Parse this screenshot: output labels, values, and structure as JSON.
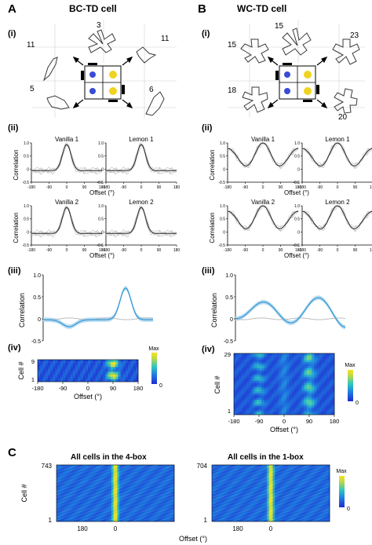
{
  "panels": {
    "A": {
      "letter": "A",
      "title": "BC-TD cell"
    },
    "B": {
      "letter": "B",
      "title": "WC-TD cell"
    },
    "C": {
      "letter": "C"
    }
  },
  "subpanel_labels": {
    "i": "(i)",
    "ii": "(ii)",
    "iii": "(iii)",
    "iv": "(iv)"
  },
  "ratemap_numbers": {
    "A": {
      "top": "3",
      "left_upper": "11",
      "right_upper": "11",
      "left_lower": "5",
      "right_lower": "6"
    },
    "B": {
      "top": "15",
      "left_upper": "15",
      "right_upper": "23",
      "left_lower": "18",
      "right_lower": "20"
    }
  },
  "plot_titles": {
    "vanilla1": "Vanilla 1",
    "lemon1": "Lemon 1",
    "vanilla2": "Vanilla 2",
    "lemon2": "Lemon 2"
  },
  "axis": {
    "correlation": "Correlation",
    "offset": "Offset (°)",
    "cell": "Cell #",
    "y_ticks_small": [
      "1.0",
      "0.5",
      "0",
      "-0.5"
    ],
    "x_ticks_small": [
      "-180",
      "-90",
      "0",
      "90",
      "180"
    ],
    "y_ticks_large": [
      "1.0",
      "0.5",
      "0",
      "-0.5"
    ],
    "x_ticks_heat": [
      "-180",
      "-90",
      "0",
      "90",
      "180"
    ],
    "y_ticks_c": [
      "180",
      "0"
    ]
  },
  "colorbar": {
    "max": "Max",
    "min": "0"
  },
  "heatmap_cells": {
    "A_top": "9",
    "A_bottom": "1",
    "B_top": "29",
    "B_bottom": "1"
  },
  "panel_c": {
    "left_title": "All cells in the 4-box",
    "right_title": "All cells in the 1-box",
    "left_top": "743",
    "left_bottom": "1",
    "right_top": "704",
    "right_bottom": "1",
    "x_ticks": [
      "180",
      "0"
    ]
  },
  "colors": {
    "blue": "#3a9bd5",
    "gray": "#b8b8b8",
    "dark": "#2a2a2a",
    "outline": "#3a3a3a"
  },
  "chart_data": [
    {
      "type": "line",
      "description_ref": "A(ii) Vanilla 1",
      "x": [
        -180,
        -90,
        0,
        90,
        180
      ],
      "y": [
        -0.05,
        -0.05,
        1.0,
        -0.05,
        -0.05
      ]
    },
    {
      "type": "line",
      "description_ref": "A(ii) Lemon 1",
      "x": [
        -180,
        -90,
        0,
        90,
        180
      ],
      "y": [
        -0.05,
        -0.05,
        1.0,
        -0.05,
        -0.05
      ]
    },
    {
      "type": "line",
      "description_ref": "A(ii) Vanilla 2",
      "x": [
        -180,
        -90,
        0,
        90,
        180
      ],
      "y": [
        -0.05,
        -0.05,
        1.0,
        -0.05,
        -0.05
      ]
    },
    {
      "type": "line",
      "description_ref": "A(ii) Lemon 2",
      "x": [
        -180,
        -90,
        0,
        90,
        180
      ],
      "y": [
        -0.05,
        -0.05,
        1.0,
        -0.05,
        -0.05
      ]
    },
    {
      "type": "line",
      "description_ref": "B(ii) Vanilla 1",
      "x": [
        -180,
        -90,
        0,
        90,
        180
      ],
      "y": [
        0.5,
        0.5,
        1.0,
        0.5,
        0.5
      ]
    },
    {
      "type": "line",
      "description_ref": "B(ii) Lemon 1",
      "x": [
        -180,
        -90,
        0,
        90,
        180
      ],
      "y": [
        0.5,
        0.5,
        1.0,
        0.5,
        0.5
      ]
    },
    {
      "type": "line",
      "description_ref": "B(ii) Vanilla 2",
      "x": [
        -180,
        -90,
        0,
        90,
        180
      ],
      "y": [
        0.5,
        0.5,
        1.0,
        0.5,
        0.5
      ]
    },
    {
      "type": "line",
      "description_ref": "B(ii) Lemon 2",
      "x": [
        -180,
        -90,
        0,
        90,
        180
      ],
      "y": [
        0.5,
        0.5,
        1.0,
        0.5,
        0.5
      ]
    },
    {
      "type": "line",
      "description_ref": "A(iii)",
      "x": [
        -180,
        -90,
        0,
        90,
        180
      ],
      "y": [
        0.0,
        -0.15,
        0.05,
        0.7,
        0.0
      ]
    },
    {
      "type": "line",
      "description_ref": "B(iii)",
      "x": [
        -180,
        -90,
        0,
        90,
        180
      ],
      "y": [
        0.35,
        0.3,
        0.3,
        0.4,
        0.05
      ]
    }
  ]
}
